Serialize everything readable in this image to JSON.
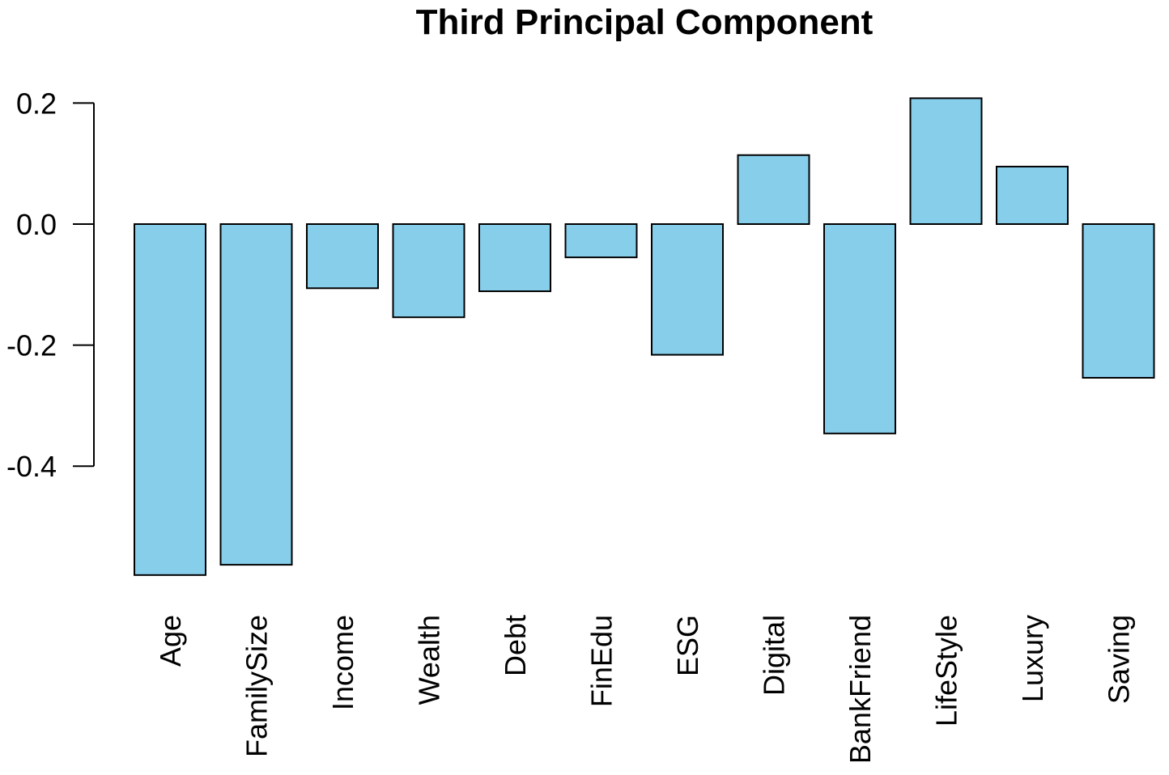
{
  "chart_data": {
    "type": "bar",
    "title": "Third Principal Component",
    "xlabel": "",
    "ylabel": "",
    "categories": [
      "Age",
      "FamilySize",
      "Income",
      "Wealth",
      "Debt",
      "FinEdu",
      "ESG",
      "Digital",
      "BankFriend",
      "LifeStyle",
      "Luxury",
      "Saving"
    ],
    "values": [
      -0.58,
      -0.563,
      -0.106,
      -0.154,
      -0.111,
      -0.055,
      -0.216,
      0.114,
      -0.346,
      0.208,
      0.095,
      -0.254
    ],
    "ylim": [
      -0.58,
      0.21
    ],
    "yticks": [
      "0.2",
      "0.0",
      "-0.2",
      "-0.4"
    ],
    "bar_color": "#87CEEB",
    "grid": false,
    "legend": "none"
  }
}
